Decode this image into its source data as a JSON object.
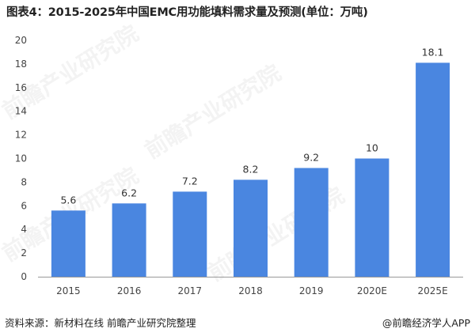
{
  "title": "图表4：2015-2025年中国EMC用功能填料需求量及预测(单位：万吨)",
  "chart_data": {
    "type": "bar",
    "title": "图表4：2015-2025年中国EMC用功能填料需求量及预测(单位：万吨)",
    "categories": [
      "2015",
      "2016",
      "2017",
      "2018",
      "2019",
      "2020E",
      "2025E"
    ],
    "values": [
      5.6,
      6.2,
      7.2,
      8.2,
      9.2,
      10,
      18.1
    ],
    "value_labels": [
      "5.6",
      "6.2",
      "7.2",
      "8.2",
      "9.2",
      "10",
      "18.1"
    ],
    "yticks": [
      "0",
      "2",
      "4",
      "6",
      "8",
      "10",
      "12",
      "14",
      "16",
      "18",
      "20"
    ],
    "ylim": [
      0,
      20
    ],
    "xlabel": "",
    "ylabel": "",
    "grid": false,
    "bar_color": "#4a86e0"
  },
  "footer": {
    "source": "资料来源：新材料在线 前瞻产业研究院整理",
    "brand": "@前瞻经济学人APP"
  },
  "watermarks": [
    "前瞻产业研究院",
    "前瞻产业研究院",
    "前瞻产业研究院",
    "前瞻产业研究院"
  ]
}
